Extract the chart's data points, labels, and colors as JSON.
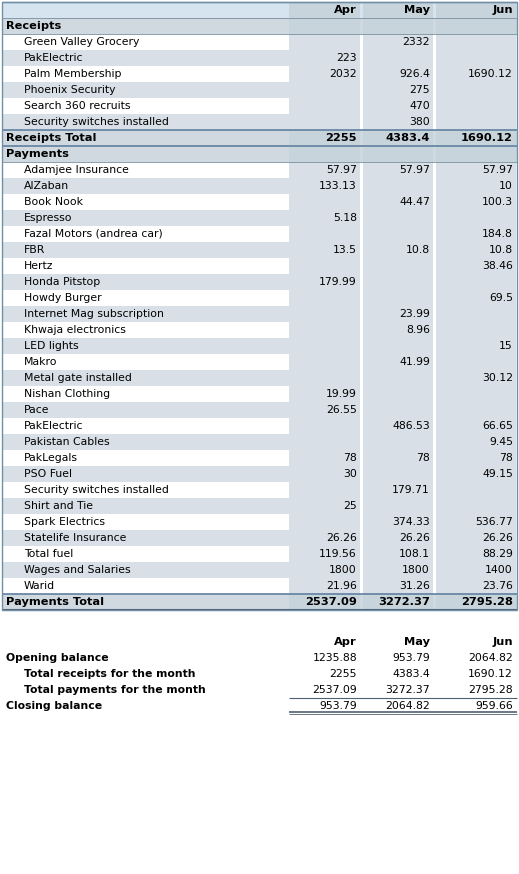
{
  "header_bg": "#d6e4f0",
  "section_bg": "#d0d8e0",
  "col_section_bg": "#c8d4dc",
  "alt_row_bg": "#d8dfe6",
  "white_bg": "#ffffff",
  "receipts_section": "Receipts",
  "receipts_items": [
    [
      "Green Valley Grocery",
      "",
      "2332",
      ""
    ],
    [
      "PakElectric",
      "223",
      "",
      ""
    ],
    [
      "Palm Membership",
      "2032",
      "926.4",
      "1690.12"
    ],
    [
      "Phoenix Security",
      "",
      "275",
      ""
    ],
    [
      "Search 360 recruits",
      "",
      "470",
      ""
    ],
    [
      "Security switches installed",
      "",
      "380",
      ""
    ]
  ],
  "receipts_total_label": "Receipts Total",
  "receipts_total": [
    "2255",
    "4383.4",
    "1690.12"
  ],
  "payments_section": "Payments",
  "payments_items": [
    [
      "Adamjee Insurance",
      "57.97",
      "57.97",
      "57.97"
    ],
    [
      "AlZaban",
      "133.13",
      "",
      "10"
    ],
    [
      "Book Nook",
      "",
      "44.47",
      "100.3"
    ],
    [
      "Espresso",
      "5.18",
      "",
      ""
    ],
    [
      "Fazal Motors (andrea car)",
      "",
      "",
      "184.8"
    ],
    [
      "FBR",
      "13.5",
      "10.8",
      "10.8"
    ],
    [
      "Hertz",
      "",
      "",
      "38.46"
    ],
    [
      "Honda Pitstop",
      "179.99",
      "",
      ""
    ],
    [
      "Howdy Burger",
      "",
      "",
      "69.5"
    ],
    [
      "Internet Mag subscription",
      "",
      "23.99",
      ""
    ],
    [
      "Khwaja electronics",
      "",
      "8.96",
      ""
    ],
    [
      "LED lights",
      "",
      "",
      "15"
    ],
    [
      "Makro",
      "",
      "41.99",
      ""
    ],
    [
      "Metal gate installed",
      "",
      "",
      "30.12"
    ],
    [
      "Nishan Clothing",
      "19.99",
      "",
      ""
    ],
    [
      "Pace",
      "26.55",
      "",
      ""
    ],
    [
      "PakElectric",
      "",
      "486.53",
      "66.65"
    ],
    [
      "Pakistan Cables",
      "",
      "",
      "9.45"
    ],
    [
      "PakLegals",
      "78",
      "78",
      "78"
    ],
    [
      "PSO Fuel",
      "30",
      "",
      "49.15"
    ],
    [
      "Security switches installed",
      "",
      "179.71",
      ""
    ],
    [
      "Shirt and Tie",
      "25",
      "",
      ""
    ],
    [
      "Spark Electrics",
      "",
      "374.33",
      "536.77"
    ],
    [
      "Statelife Insurance",
      "26.26",
      "26.26",
      "26.26"
    ],
    [
      "Total fuel",
      "119.56",
      "108.1",
      "88.29"
    ],
    [
      "Wages and Salaries",
      "1800",
      "1800",
      "1400"
    ],
    [
      "Warid",
      "21.96",
      "31.26",
      "23.76"
    ]
  ],
  "payments_total_label": "Payments Total",
  "payments_total": [
    "2537.09",
    "3272.37",
    "2795.28"
  ],
  "summary_labels": [
    "Opening balance",
    "Total receipts for the month",
    "Total payments for the month",
    "Closing balance"
  ],
  "summary_indent": [
    false,
    true,
    true,
    false
  ],
  "summary_bold": [
    true,
    true,
    true,
    true
  ],
  "summary_values": [
    [
      "1235.88",
      "953.79",
      "2064.82"
    ],
    [
      "2255",
      "4383.4",
      "1690.12"
    ],
    [
      "2537.09",
      "3272.37",
      "2795.28"
    ],
    [
      "953.79",
      "2064.82",
      "959.66"
    ]
  ],
  "font_size": 7.8,
  "header_font_size": 8.2,
  "bold_font_size": 8.2
}
